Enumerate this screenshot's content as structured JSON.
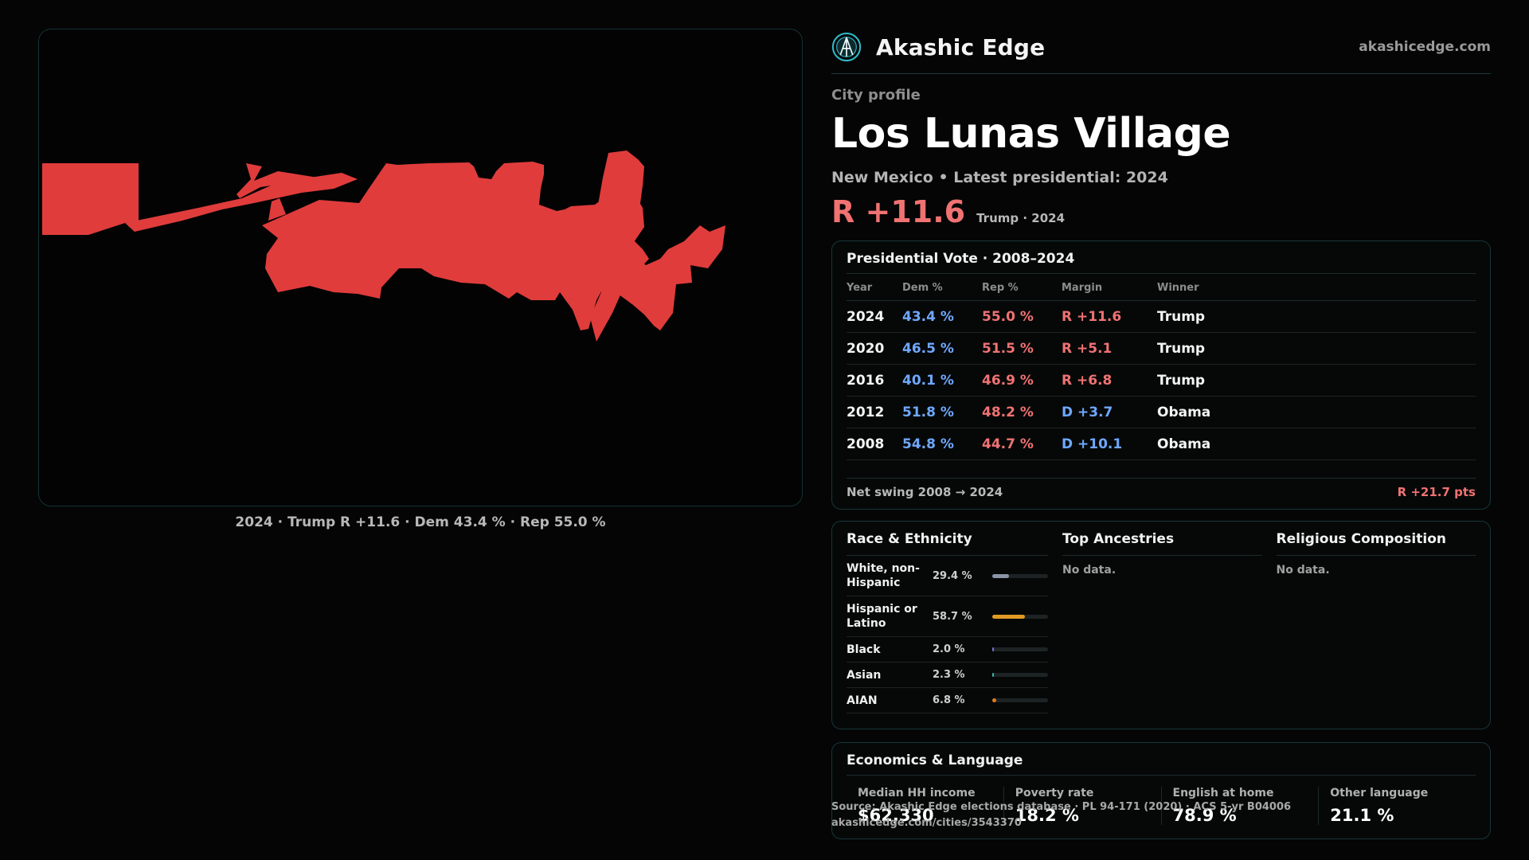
{
  "map": {
    "caption": "2024 · Trump R +11.6 · Dem 43.4 % · Rep 55.0 %",
    "fill_color": "#e03c3c"
  },
  "header": {
    "brand_name": "Akashic Edge",
    "brand_url": "akashicedge.com",
    "logo_icon": "akashic-edge-logo-icon",
    "accent_color": "#2fb7c7"
  },
  "profile": {
    "eyebrow": "City profile",
    "city_name": "Los Lunas Village",
    "subtitle": "New Mexico • Latest presidential: 2024",
    "headline_margin": "R +11.6",
    "headline_note": "Trump · 2024"
  },
  "presidential": {
    "title": "Presidential Vote · 2008–2024",
    "columns": [
      "Year",
      "Dem %",
      "Rep %",
      "Margin",
      "Winner"
    ],
    "rows": [
      {
        "year": "2024",
        "dem": "43.4 %",
        "rep": "55.0 %",
        "margin": "R +11.6",
        "margin_party": "R",
        "winner": "Trump"
      },
      {
        "year": "2020",
        "dem": "46.5 %",
        "rep": "51.5 %",
        "margin": "R +5.1",
        "margin_party": "R",
        "winner": "Trump"
      },
      {
        "year": "2016",
        "dem": "40.1 %",
        "rep": "46.9 %",
        "margin": "R +6.8",
        "margin_party": "R",
        "winner": "Trump"
      },
      {
        "year": "2012",
        "dem": "51.8 %",
        "rep": "48.2 %",
        "margin": "D +3.7",
        "margin_party": "D",
        "winner": "Obama"
      },
      {
        "year": "2008",
        "dem": "54.8 %",
        "rep": "44.7 %",
        "margin": "D +10.1",
        "margin_party": "D",
        "winner": "Obama"
      }
    ],
    "net_swing_label": "Net swing 2008 → 2024",
    "net_swing_value": "R +21.7 pts",
    "dem_color": "#6fa8ff",
    "rep_color": "#f07272"
  },
  "race": {
    "title": "Race & Ethnicity",
    "rows": [
      {
        "label": "White, non-Hispanic",
        "value": "29.4 %",
        "fraction": 0.294,
        "color": "#8a94a6"
      },
      {
        "label": "Hispanic or Latino",
        "value": "58.7 %",
        "fraction": 0.587,
        "color": "#e29a25"
      },
      {
        "label": "Black",
        "value": "2.0 %",
        "fraction": 0.02,
        "color": "#7c6fd6"
      },
      {
        "label": "Asian",
        "value": "2.3 %",
        "fraction": 0.023,
        "color": "#3ab7a8"
      },
      {
        "label": "AIAN",
        "value": "6.8 %",
        "fraction": 0.068,
        "color": "#e07a1e"
      }
    ]
  },
  "ancestries": {
    "title": "Top Ancestries",
    "empty": "No data."
  },
  "religion": {
    "title": "Religious Composition",
    "empty": "No data."
  },
  "economics": {
    "title": "Economics & Language",
    "items": [
      {
        "label": "Median HH income",
        "value": "$62,330"
      },
      {
        "label": "Poverty rate",
        "value": "18.2 %"
      },
      {
        "label": "English at home",
        "value": "78.9 %"
      },
      {
        "label": "Other language",
        "value": "21.1 %"
      }
    ]
  },
  "source": {
    "line1": "Source: Akashic Edge elections database · PL 94-171 (2020) · ACS 5-yr B04006",
    "line2": "akashicedge.com/cities/3543370"
  }
}
